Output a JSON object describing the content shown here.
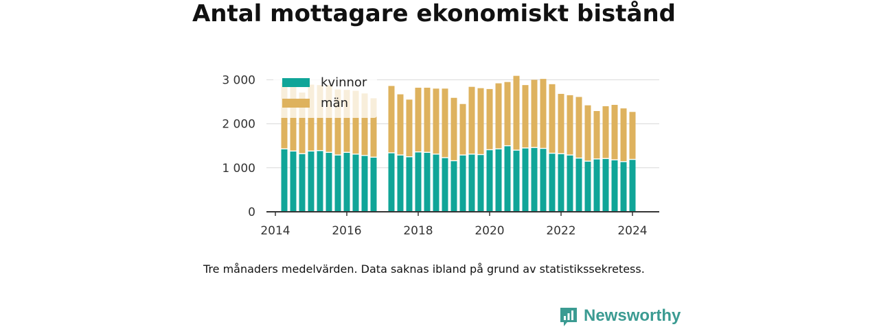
{
  "title": "Antal mottagare ekonomiskt bistånd",
  "note": "Tre månaders medelvärden. Data saknas ibland på grund av statistikssekretess.",
  "brand": "Newsworthy",
  "colors": {
    "kvinnor": "#10a598",
    "man": "#deb25e",
    "brand": "#3b9b92"
  },
  "chart_data": {
    "type": "bar",
    "stacked": true,
    "title": "Antal mottagare ekonomiskt bistånd",
    "x": [
      2014.25,
      2014.5,
      2014.75,
      2015.0,
      2015.25,
      2015.5,
      2015.75,
      2016.0,
      2016.25,
      2016.5,
      2016.75,
      2017.25,
      2017.5,
      2017.75,
      2018.0,
      2018.25,
      2018.5,
      2018.75,
      2019.0,
      2019.25,
      2019.5,
      2019.75,
      2020.0,
      2020.25,
      2020.5,
      2020.75,
      2021.0,
      2021.25,
      2021.5,
      2021.75,
      2022.0,
      2022.25,
      2022.5,
      2022.75,
      2023.0,
      2023.25,
      2023.5,
      2023.75,
      2024.0
    ],
    "series": [
      {
        "name": "kvinnor",
        "values": [
          1420,
          1370,
          1310,
          1370,
          1380,
          1340,
          1280,
          1340,
          1300,
          1270,
          1230,
          1330,
          1280,
          1240,
          1350,
          1340,
          1300,
          1220,
          1150,
          1280,
          1300,
          1290,
          1400,
          1420,
          1490,
          1390,
          1440,
          1450,
          1430,
          1320,
          1310,
          1280,
          1210,
          1140,
          1190,
          1200,
          1170,
          1130,
          1180
        ]
      },
      {
        "name": "män",
        "values": [
          1520,
          1500,
          1400,
          1520,
          1500,
          1540,
          1500,
          1430,
          1450,
          1420,
          1350,
          1530,
          1390,
          1310,
          1470,
          1480,
          1500,
          1580,
          1440,
          1170,
          1540,
          1520,
          1390,
          1500,
          1460,
          1700,
          1440,
          1550,
          1590,
          1580,
          1370,
          1370,
          1400,
          1280,
          1100,
          1200,
          1260,
          1220,
          1090
        ]
      }
    ],
    "xlim": [
      2013.75,
      2024.75
    ],
    "ylim": [
      0,
      3100
    ],
    "xticks": [
      "2014",
      "2016",
      "2018",
      "2020",
      "2022",
      "2024"
    ],
    "yticks": [
      "0",
      "1 000",
      "2 000",
      "3 000"
    ],
    "xlabel": "",
    "ylabel": "",
    "grid": true,
    "legend": [
      "kvinnor",
      "män"
    ],
    "legend_placement": "top-left"
  }
}
